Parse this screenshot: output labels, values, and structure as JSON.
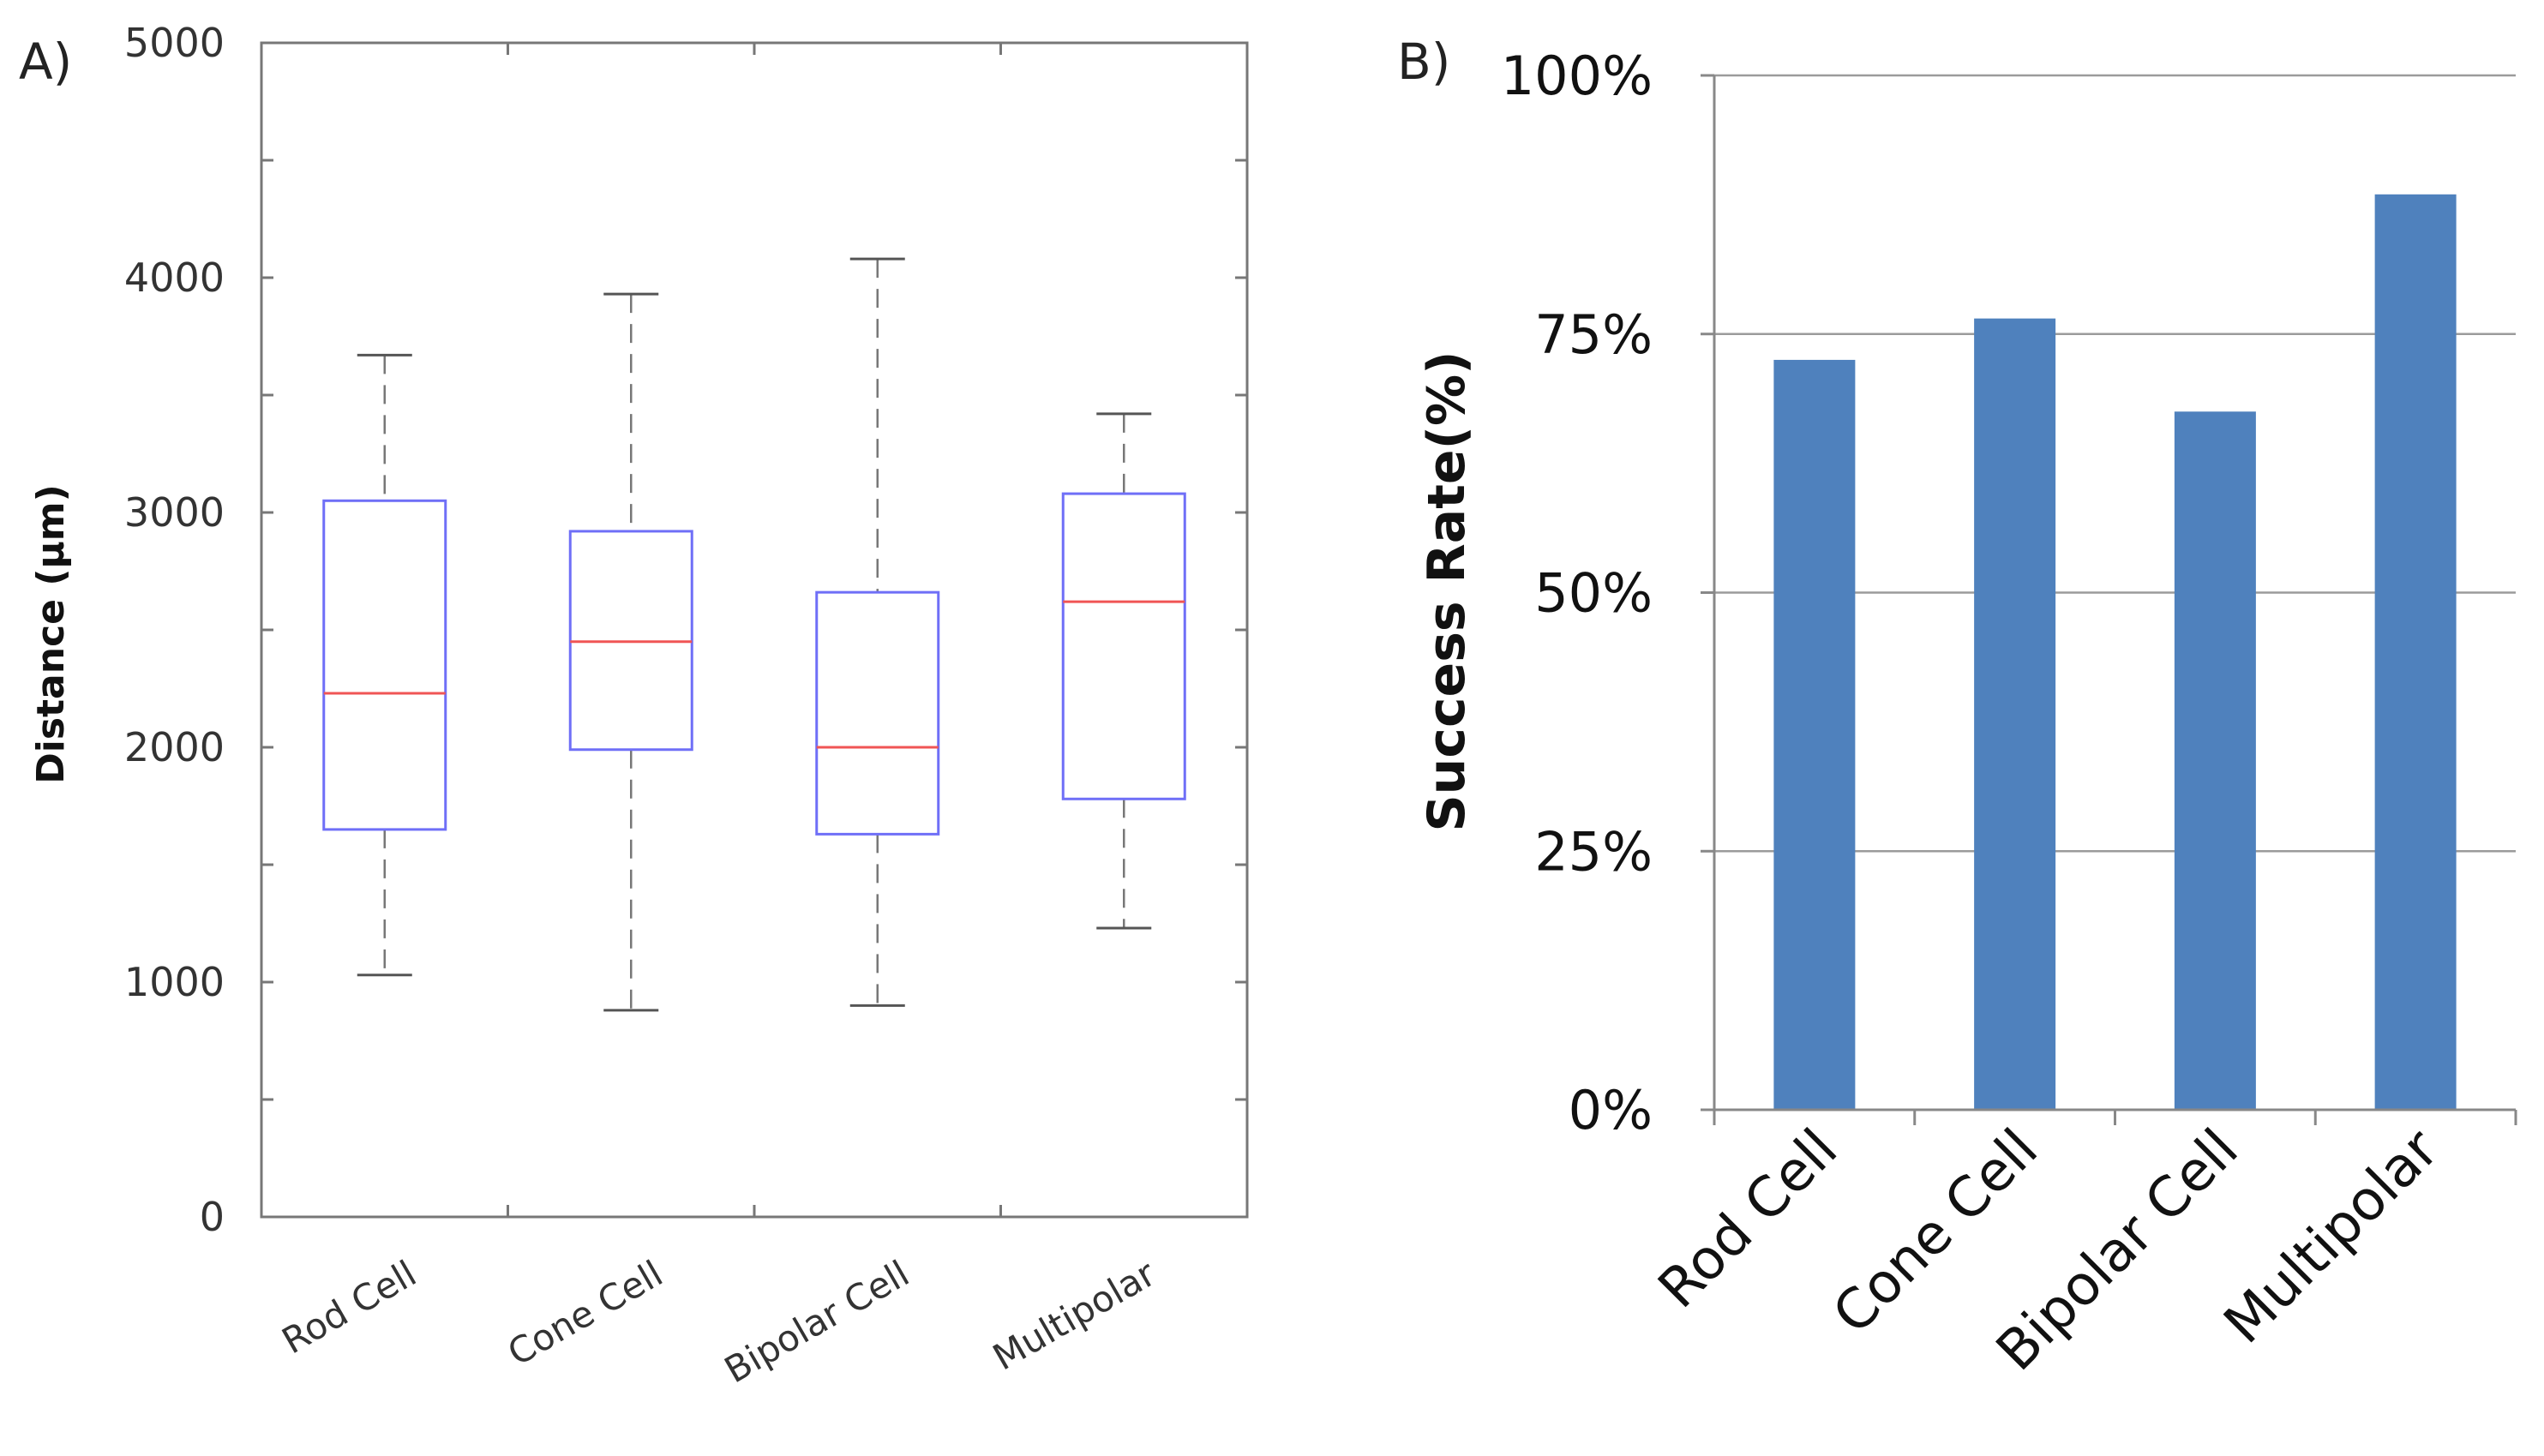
{
  "chart_data": [
    {
      "panel_label": "A)",
      "type": "box",
      "title": "",
      "xlabel": "",
      "ylabel": "Distance (µm)",
      "ylim": [
        0,
        5000
      ],
      "yticks": [
        0,
        1000,
        2000,
        3000,
        4000,
        5000
      ],
      "ytick_labels": [
        "0",
        "1000",
        "2000",
        "3000",
        "4000",
        "5000"
      ],
      "categories": [
        "Rod Cell",
        "Cone Cell",
        "Bipolar Cell",
        "Multipolar"
      ],
      "boxes": [
        {
          "whisker_low": 1030,
          "q1": 1650,
          "median": 2230,
          "q3": 3050,
          "whisker_high": 3670
        },
        {
          "whisker_low": 880,
          "q1": 1990,
          "median": 2450,
          "q3": 2920,
          "whisker_high": 3930
        },
        {
          "whisker_low": 900,
          "q1": 1630,
          "median": 2000,
          "q3": 2660,
          "whisker_high": 4080
        },
        {
          "whisker_low": 1230,
          "q1": 1780,
          "median": 2620,
          "q3": 3080,
          "whisker_high": 3420
        }
      ],
      "colors": {
        "box": "#6f6ff7",
        "median": "#f05555",
        "whisker": "#777777",
        "axis": "#777777"
      }
    },
    {
      "panel_label": "B)",
      "type": "bar",
      "title": "",
      "xlabel": "",
      "ylabel": "Success Rate(%)",
      "ylim": [
        0,
        100
      ],
      "yticks": [
        0,
        25,
        50,
        75,
        100
      ],
      "ytick_labels": [
        "0%",
        "25%",
        "50%",
        "75%",
        "100%"
      ],
      "categories": [
        "Rod Cell",
        "Cone Cell",
        "Bipolar Cell",
        "Multipolar"
      ],
      "values": [
        72.5,
        76.5,
        67.5,
        88.5
      ],
      "grid": true,
      "colors": {
        "bar": "#4f81bd",
        "grid": "#9b9b9b",
        "axis": "#888888"
      }
    }
  ]
}
